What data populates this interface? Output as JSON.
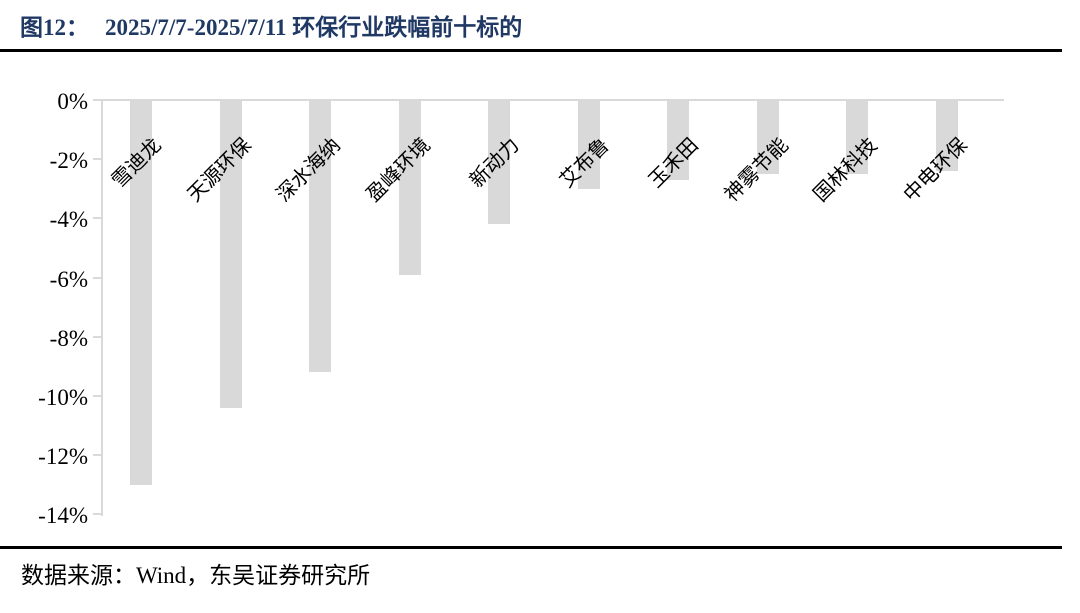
{
  "header": {
    "label": "图12：",
    "title": "2025/7/7-2025/7/11 环保行业跌幅前十标的"
  },
  "footer": {
    "source": "数据来源：Wind，东吴证券研究所"
  },
  "chart_data": {
    "type": "bar",
    "title": "2025/7/7-2025/7/11 环保行业跌幅前十标的",
    "categories": [
      "雪迪龙",
      "天源环保",
      "深水海纳",
      "盈峰环境",
      "新动力",
      "艾布鲁",
      "玉禾田",
      "神雾节能",
      "国林科技",
      "中电环保"
    ],
    "values": [
      -13.0,
      -10.4,
      -9.2,
      -5.9,
      -4.2,
      -3.0,
      -2.7,
      -2.5,
      -2.5,
      -2.4
    ],
    "unit": "%",
    "xlabel": "",
    "ylabel": "",
    "ylim": [
      -14,
      0
    ],
    "y_tick_step": 2,
    "y_tick_labels": [
      "0%",
      "-2%",
      "-4%",
      "-6%",
      "-8%",
      "-10%",
      "-12%",
      "-14%"
    ],
    "grid": "off",
    "legend_position": "none",
    "bar_color": "#d9d9d9",
    "axis_color": "#d9d9d9",
    "text_color": "#000000",
    "title_color": "#1f3864",
    "rule_color": "#000000",
    "category_label_rotation_deg": -45
  }
}
